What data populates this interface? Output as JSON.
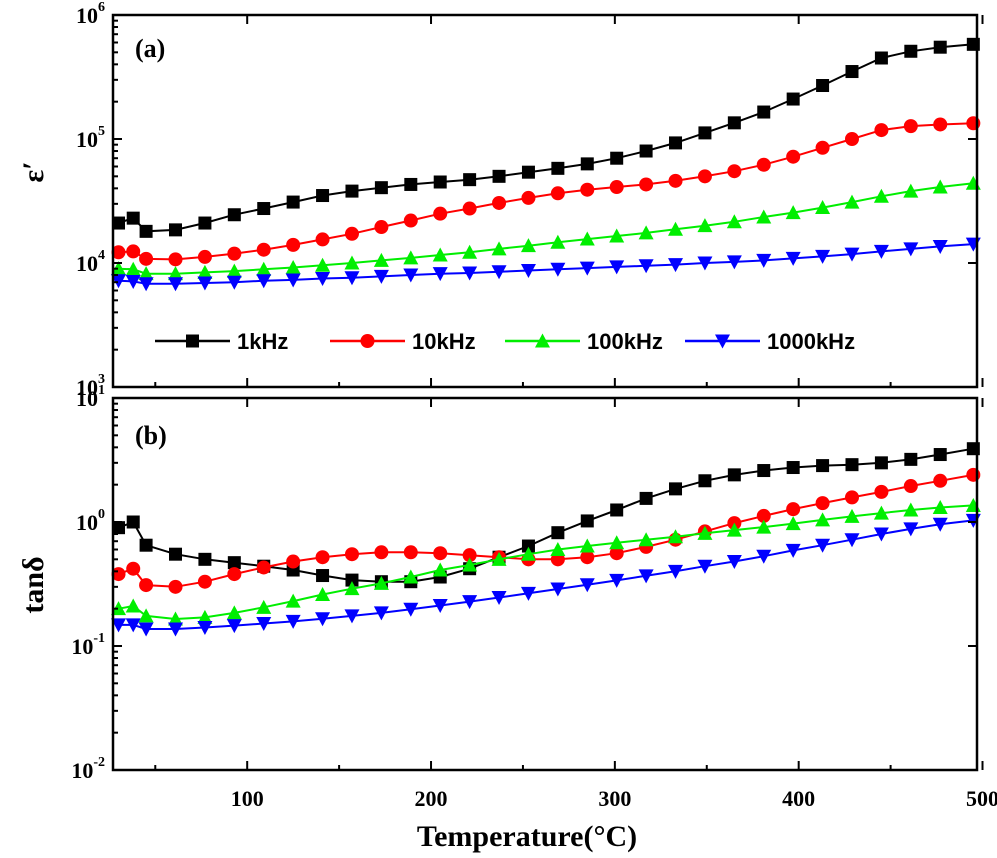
{
  "colors": {
    "1kHz": "#000000",
    "10kHz": "#ff0000",
    "100kHz": "#00ee00",
    "1000kHz": "#0000ff"
  },
  "chart_data": [
    {
      "type": "line",
      "panel_label": "(a)",
      "xlabel": "Temperature(°C)",
      "ylabel": "ε′",
      "yscale": "log",
      "xlim": [
        27,
        497
      ],
      "ylim": [
        1000,
        1000000
      ],
      "x_ticks": [
        100,
        200,
        300,
        400,
        500
      ],
      "y_ticks": [
        {
          "base": "10",
          "exp": "3",
          "value": 1000
        },
        {
          "base": "10",
          "exp": "4",
          "value": 10000
        },
        {
          "base": "10",
          "exp": "5",
          "value": 100000
        },
        {
          "base": "10",
          "exp": "6",
          "value": 1000000
        }
      ],
      "legend_position": "inside-bottom",
      "x": [
        30,
        38,
        45,
        61,
        77,
        93,
        109,
        125,
        141,
        157,
        173,
        189,
        205,
        221,
        237,
        253,
        269,
        285,
        301,
        317,
        333,
        349,
        365,
        381,
        397,
        413,
        429,
        445,
        461,
        477,
        495
      ],
      "series": [
        {
          "name": "1kHz",
          "marker": "square",
          "values": [
            21000,
            23000,
            18000,
            18500,
            21000,
            24500,
            27500,
            31000,
            35000,
            38000,
            40500,
            43000,
            45000,
            47000,
            50000,
            54000,
            58000,
            63000,
            70000,
            80000,
            93000,
            112000,
            135000,
            165000,
            210000,
            270000,
            350000,
            450000,
            510000,
            550000,
            580000
          ]
        },
        {
          "name": "10kHz",
          "marker": "circle",
          "values": [
            12200,
            12400,
            10800,
            10700,
            11200,
            11900,
            12800,
            14000,
            15500,
            17200,
            19500,
            22000,
            25000,
            27500,
            30500,
            33500,
            36500,
            39000,
            41000,
            43000,
            46000,
            50000,
            55000,
            62000,
            72000,
            85000,
            100000,
            118000,
            127000,
            131000,
            134000
          ]
        },
        {
          "name": "100kHz",
          "marker": "triangle-up",
          "values": [
            9000,
            8900,
            8200,
            8200,
            8400,
            8600,
            8900,
            9200,
            9600,
            10000,
            10500,
            11000,
            11600,
            12200,
            13000,
            13800,
            14700,
            15600,
            16500,
            17500,
            18700,
            20000,
            21500,
            23500,
            25500,
            28000,
            31000,
            34500,
            38000,
            41000,
            44000
          ]
        },
        {
          "name": "1000kHz",
          "marker": "triangle-down",
          "values": [
            7200,
            7100,
            6800,
            6800,
            6900,
            7000,
            7200,
            7300,
            7500,
            7600,
            7800,
            8000,
            8200,
            8300,
            8500,
            8700,
            8900,
            9100,
            9300,
            9500,
            9700,
            10000,
            10200,
            10500,
            10900,
            11300,
            11800,
            12400,
            13000,
            13600,
            14200
          ]
        }
      ]
    },
    {
      "type": "line",
      "panel_label": "(b)",
      "xlabel": "Temperature(°C)",
      "ylabel": "tanδ",
      "yscale": "log",
      "xlim": [
        27,
        497
      ],
      "ylim": [
        0.01,
        10
      ],
      "x_ticks": [
        100,
        200,
        300,
        400,
        500
      ],
      "y_ticks": [
        {
          "base": "10",
          "exp": "-2",
          "value": 0.01
        },
        {
          "base": "10",
          "exp": "-1",
          "value": 0.1
        },
        {
          "base": "10",
          "exp": "0",
          "value": 1
        },
        {
          "base": "10",
          "exp": "1",
          "value": 10
        }
      ],
      "x": [
        30,
        38,
        45,
        61,
        77,
        93,
        109,
        125,
        141,
        157,
        173,
        189,
        205,
        221,
        237,
        253,
        269,
        285,
        301,
        317,
        333,
        349,
        365,
        381,
        397,
        413,
        429,
        445,
        461,
        477,
        495
      ],
      "series": [
        {
          "name": "1kHz",
          "marker": "square",
          "values": [
            0.9,
            1.0,
            0.65,
            0.55,
            0.5,
            0.47,
            0.44,
            0.41,
            0.37,
            0.34,
            0.33,
            0.33,
            0.36,
            0.42,
            0.52,
            0.64,
            0.82,
            1.02,
            1.25,
            1.55,
            1.85,
            2.15,
            2.4,
            2.6,
            2.75,
            2.85,
            2.9,
            3.0,
            3.2,
            3.5,
            3.9
          ]
        },
        {
          "name": "10kHz",
          "marker": "circle",
          "values": [
            0.38,
            0.42,
            0.31,
            0.3,
            0.33,
            0.38,
            0.43,
            0.48,
            0.52,
            0.55,
            0.57,
            0.57,
            0.56,
            0.54,
            0.52,
            0.5,
            0.5,
            0.52,
            0.56,
            0.63,
            0.72,
            0.84,
            0.98,
            1.12,
            1.27,
            1.42,
            1.58,
            1.75,
            1.95,
            2.15,
            2.4
          ]
        },
        {
          "name": "100kHz",
          "marker": "triangle-up",
          "values": [
            0.2,
            0.21,
            0.175,
            0.165,
            0.17,
            0.185,
            0.205,
            0.23,
            0.26,
            0.29,
            0.32,
            0.36,
            0.41,
            0.45,
            0.5,
            0.55,
            0.6,
            0.64,
            0.68,
            0.72,
            0.76,
            0.81,
            0.86,
            0.91,
            0.97,
            1.04,
            1.11,
            1.18,
            1.25,
            1.31,
            1.36
          ]
        },
        {
          "name": "1000kHz",
          "marker": "triangle-down",
          "values": [
            0.148,
            0.148,
            0.137,
            0.137,
            0.141,
            0.146,
            0.152,
            0.158,
            0.166,
            0.175,
            0.185,
            0.198,
            0.212,
            0.228,
            0.246,
            0.266,
            0.288,
            0.312,
            0.338,
            0.368,
            0.4,
            0.44,
            0.48,
            0.53,
            0.59,
            0.65,
            0.72,
            0.8,
            0.88,
            0.96,
            1.03
          ]
        }
      ]
    }
  ]
}
